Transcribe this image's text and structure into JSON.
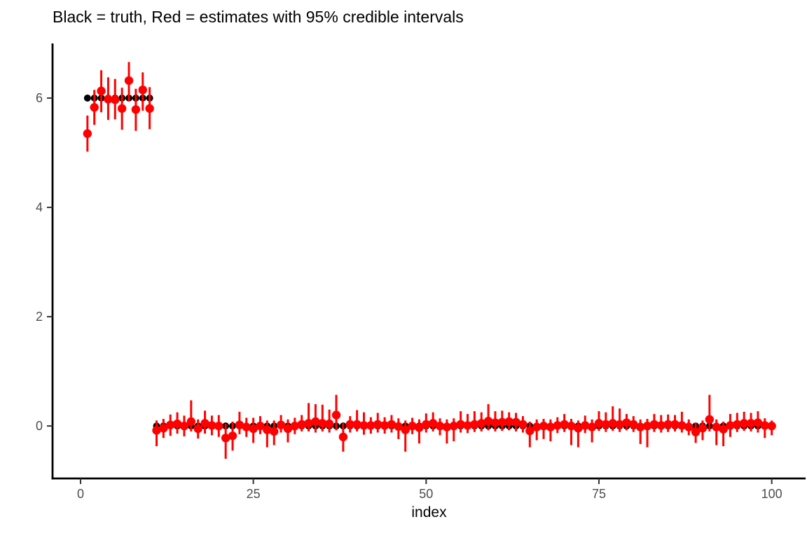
{
  "colors": {
    "truth": "#000000",
    "estimate": "#FF0000",
    "axis_line": "#000000",
    "tick_mark": "#333333",
    "tick_label": "#4D4D4D",
    "title_text": "#000000",
    "background": "#FFFFFF"
  },
  "chart_data": {
    "type": "scatter",
    "title": "Black = truth, Red = estimates with 95% credible intervals",
    "xlabel": "index",
    "ylabel": "",
    "grid": false,
    "legend_position": "none",
    "xlim": [
      -4.05,
      104.9
    ],
    "ylim": [
      -0.96,
      7.0
    ],
    "x_ticks": [
      0,
      25,
      50,
      75,
      100
    ],
    "y_ticks": [
      0,
      2,
      4,
      6
    ],
    "x": [
      1,
      2,
      3,
      4,
      5,
      6,
      7,
      8,
      9,
      10,
      11,
      12,
      13,
      14,
      15,
      16,
      17,
      18,
      19,
      20,
      21,
      22,
      23,
      24,
      25,
      26,
      27,
      28,
      29,
      30,
      31,
      32,
      33,
      34,
      35,
      36,
      37,
      38,
      39,
      40,
      41,
      42,
      43,
      44,
      45,
      46,
      47,
      48,
      49,
      50,
      51,
      52,
      53,
      54,
      55,
      56,
      57,
      58,
      59,
      60,
      61,
      62,
      63,
      64,
      65,
      66,
      67,
      68,
      69,
      70,
      71,
      72,
      73,
      74,
      75,
      76,
      77,
      78,
      79,
      80,
      81,
      82,
      83,
      84,
      85,
      86,
      87,
      88,
      89,
      90,
      91,
      92,
      93,
      94,
      95,
      96,
      97,
      98,
      99,
      100
    ],
    "series": [
      {
        "name": "truth",
        "geom": "point",
        "color": "#000000",
        "y": [
          6,
          6,
          6,
          6,
          6,
          6,
          6,
          6,
          6,
          6,
          0,
          0,
          0,
          0,
          0,
          0,
          0,
          0,
          0,
          0,
          0,
          0,
          0,
          0,
          0,
          0,
          0,
          0,
          0,
          0,
          0,
          0,
          0,
          0,
          0,
          0,
          0,
          0,
          0,
          0,
          0,
          0,
          0,
          0,
          0,
          0,
          0,
          0,
          0,
          0,
          0,
          0,
          0,
          0,
          0,
          0,
          0,
          0,
          0,
          0,
          0,
          0,
          0,
          0,
          0,
          0,
          0,
          0,
          0,
          0,
          0,
          0,
          0,
          0,
          0,
          0,
          0,
          0,
          0,
          0,
          0,
          0,
          0,
          0,
          0,
          0,
          0,
          0,
          0,
          0,
          0,
          0,
          0,
          0,
          0,
          0,
          0,
          0,
          0,
          0
        ]
      },
      {
        "name": "estimates with 95% credible intervals",
        "geom": "pointrange",
        "color": "#FF0000",
        "y": [
          5.35,
          5.83,
          6.13,
          5.98,
          5.97,
          5.81,
          6.32,
          5.79,
          6.15,
          5.81,
          -0.08,
          -0.04,
          0.02,
          0.04,
          0.0,
          0.08,
          -0.05,
          0.05,
          0.01,
          0.0,
          -0.22,
          -0.18,
          0.02,
          -0.02,
          -0.05,
          0.0,
          -0.07,
          -0.1,
          0.02,
          -0.05,
          0.0,
          0.03,
          0.05,
          0.08,
          0.05,
          0.04,
          0.2,
          -0.2,
          0.03,
          0.03,
          0.01,
          0.01,
          0.03,
          0.01,
          0.03,
          -0.01,
          -0.07,
          0.0,
          -0.03,
          0.03,
          0.05,
          0.0,
          -0.02,
          0.0,
          0.03,
          0.01,
          0.03,
          0.05,
          0.09,
          0.06,
          0.07,
          0.08,
          0.07,
          0.03,
          -0.09,
          -0.02,
          0.0,
          -0.02,
          0.01,
          0.03,
          0.0,
          -0.04,
          0.01,
          -0.02,
          0.05,
          0.03,
          0.05,
          0.03,
          0.06,
          0.03,
          -0.02,
          0.0,
          0.03,
          0.01,
          0.03,
          0.03,
          0.01,
          -0.02,
          -0.11,
          -0.04,
          0.12,
          -0.02,
          -0.06,
          0.01,
          0.03,
          0.05,
          0.05,
          0.06,
          0.01,
          0.0
        ],
        "lo": [
          5.02,
          5.51,
          5.74,
          5.6,
          5.61,
          5.42,
          5.94,
          5.4,
          5.77,
          5.43,
          -0.37,
          -0.22,
          -0.18,
          -0.14,
          -0.19,
          -0.1,
          -0.23,
          -0.14,
          -0.17,
          -0.2,
          -0.6,
          -0.45,
          -0.15,
          -0.2,
          -0.31,
          -0.15,
          -0.39,
          -0.35,
          -0.12,
          -0.3,
          -0.15,
          -0.1,
          -0.1,
          -0.12,
          -0.1,
          -0.12,
          -0.08,
          -0.47,
          -0.12,
          -0.1,
          -0.16,
          -0.14,
          -0.12,
          -0.14,
          -0.12,
          -0.24,
          -0.47,
          -0.15,
          -0.32,
          -0.12,
          -0.1,
          -0.17,
          -0.32,
          -0.28,
          -0.12,
          -0.13,
          -0.11,
          -0.1,
          -0.08,
          -0.1,
          -0.09,
          -0.08,
          -0.1,
          -0.12,
          -0.39,
          -0.26,
          -0.24,
          -0.28,
          -0.13,
          -0.11,
          -0.35,
          -0.39,
          -0.13,
          -0.3,
          -0.09,
          -0.11,
          -0.09,
          -0.11,
          -0.08,
          -0.11,
          -0.33,
          -0.39,
          -0.11,
          -0.12,
          -0.11,
          -0.1,
          -0.12,
          -0.17,
          -0.31,
          -0.26,
          -0.1,
          -0.35,
          -0.37,
          -0.2,
          -0.11,
          -0.09,
          -0.1,
          -0.12,
          -0.22,
          -0.17
        ],
        "hi": [
          5.68,
          6.15,
          6.51,
          6.38,
          6.35,
          6.19,
          6.66,
          6.17,
          6.47,
          6.2,
          0.1,
          0.13,
          0.21,
          0.25,
          0.19,
          0.47,
          0.12,
          0.28,
          0.19,
          0.2,
          0.04,
          0.08,
          0.26,
          0.15,
          0.15,
          0.18,
          0.1,
          0.1,
          0.2,
          0.12,
          0.15,
          0.2,
          0.42,
          0.4,
          0.39,
          0.3,
          0.57,
          0.05,
          0.18,
          0.29,
          0.25,
          0.16,
          0.24,
          0.16,
          0.2,
          0.14,
          0.1,
          0.15,
          0.12,
          0.23,
          0.25,
          0.14,
          0.12,
          0.14,
          0.27,
          0.22,
          0.27,
          0.25,
          0.4,
          0.27,
          0.28,
          0.25,
          0.24,
          0.18,
          0.08,
          0.12,
          0.13,
          0.12,
          0.16,
          0.22,
          0.13,
          0.1,
          0.19,
          0.12,
          0.27,
          0.25,
          0.36,
          0.32,
          0.22,
          0.18,
          0.12,
          0.13,
          0.22,
          0.2,
          0.21,
          0.2,
          0.26,
          0.12,
          0.06,
          0.1,
          0.57,
          0.12,
          0.08,
          0.22,
          0.24,
          0.26,
          0.24,
          0.27,
          0.14,
          0.1
        ]
      }
    ]
  }
}
